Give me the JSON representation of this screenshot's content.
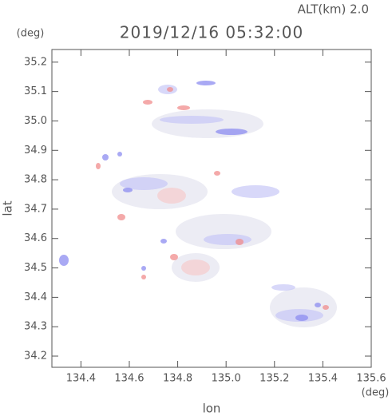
{
  "chart_data": {
    "type": "map",
    "title": "2019/12/16 05:32:00",
    "subtitle": "ALT(km) 2.0",
    "x_label": "lon",
    "x_unit": "(deg)",
    "y_label": "lat",
    "y_unit": "(deg)",
    "xlim": [
      134.28,
      135.6
    ],
    "xticks": [
      134.4,
      134.6,
      134.8,
      {
        "value": 135,
        "label": "135.0"
      },
      135.2,
      135.4,
      135.6
    ],
    "ylim": [
      34.162,
      35.243
    ],
    "yticks": [
      34.2,
      34.3,
      34.4,
      34.5,
      34.6,
      34.7,
      34.8,
      34.9,
      {
        "value": 35,
        "label": "35.0"
      },
      35.1,
      35.2
    ]
  }
}
